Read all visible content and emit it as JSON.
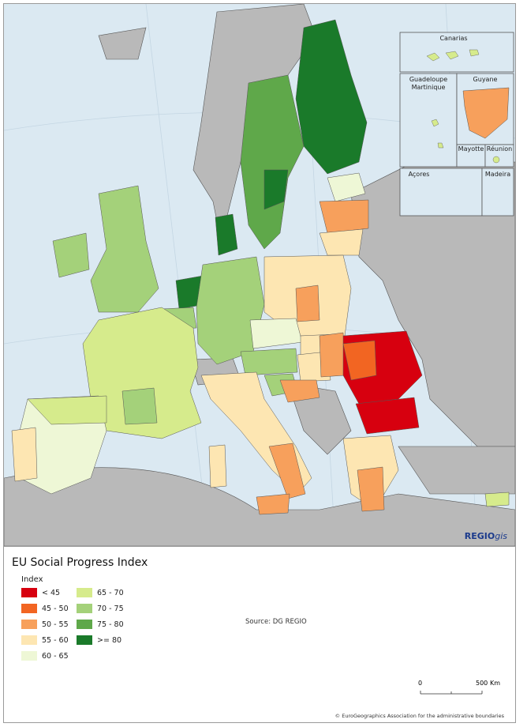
{
  "title": "EU Social Progress Index",
  "legend": {
    "heading": "Index",
    "items": [
      {
        "label": "< 45",
        "color": "#d7000f"
      },
      {
        "label": "45 - 50",
        "color": "#f26522"
      },
      {
        "label": "50 - 55",
        "color": "#f7a05c"
      },
      {
        "label": "55 - 60",
        "color": "#fde6b2"
      },
      {
        "label": "60 - 65",
        "color": "#eef7d6"
      },
      {
        "label": "65 - 70",
        "color": "#d6eb8c"
      },
      {
        "label": "70 - 75",
        "color": "#a4d17a"
      },
      {
        "label": "75 - 80",
        "color": "#5fa84a"
      },
      {
        "label": ">= 80",
        "color": "#1a7a2a"
      }
    ]
  },
  "source": "Source: DG REGIO",
  "brand": {
    "bold": "REGIO",
    "italic": "gis"
  },
  "insets": {
    "canarias": "Canarias",
    "guadeloupe": "Guadeloupe",
    "martinique": "Martinique",
    "guyane": "Guyane",
    "mayotte": "Mayotte",
    "reunion": "Réunion",
    "acores": "Açores",
    "madeira": "Madeira"
  },
  "scale": {
    "start": "0",
    "end": "500",
    "unit": "Km"
  },
  "credit": "© EuroGeographics Association for the administrative boundaries",
  "colors": {
    "sea": "#dbe9f2",
    "non_eu_land": "#b9b9b9",
    "border": "#333333"
  }
}
